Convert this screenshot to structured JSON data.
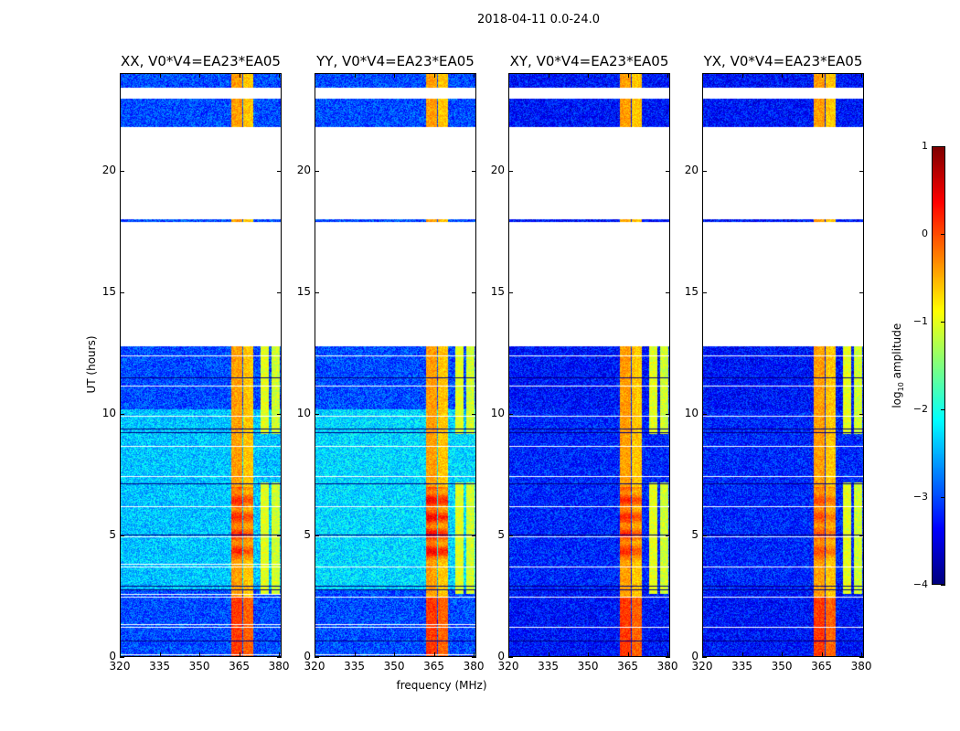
{
  "suptitle": "2018-04-11 0.0-24.0",
  "colors": {
    "flagged": "#ffffff",
    "frame": "#000000"
  },
  "chart_data": {
    "type": "heatmap",
    "xlabel": "frequency (MHz)",
    "ylabel": "UT (hours)",
    "xlim": [
      320,
      381
    ],
    "ylim": [
      0,
      24
    ],
    "xticks": [
      320,
      335,
      350,
      365,
      380
    ],
    "yticks": [
      0,
      5,
      10,
      15,
      20
    ],
    "colormap": "jet",
    "colorbar": {
      "label_main": "log",
      "label_sub": "10",
      "label_rest": " amplitude",
      "range": [
        -4,
        1
      ],
      "ticks": [
        1,
        0,
        -1,
        -2,
        -3,
        -4
      ]
    },
    "flagged_time_ranges_hours": [
      [
        12.8,
        17.9
      ],
      [
        18.0,
        21.8
      ],
      [
        22.95,
        23.4
      ]
    ],
    "rfi_channels_MHz": [
      [
        362,
        366,
        0.0
      ],
      [
        366.5,
        370,
        -0.2
      ],
      [
        373,
        376,
        -0.6
      ],
      [
        377,
        380,
        -0.7
      ]
    ],
    "panels": [
      {
        "title": "XX, V0*V4=EA23*EA05",
        "background_log_amp": -2.4,
        "quiet_log_amp": -3.0,
        "rfi_peak": 0.6
      },
      {
        "title": "YY, V0*V4=EA23*EA05",
        "background_log_amp": -2.3,
        "quiet_log_amp": -3.0,
        "rfi_peak": 0.8
      },
      {
        "title": "XY, V0*V4=EA23*EA05",
        "background_log_amp": -3.2,
        "quiet_log_amp": -3.3,
        "rfi_peak": 0.6
      },
      {
        "title": "YX, V0*V4=EA23*EA05",
        "background_log_amp": -3.2,
        "quiet_log_amp": -3.3,
        "rfi_peak": 0.4
      }
    ]
  }
}
